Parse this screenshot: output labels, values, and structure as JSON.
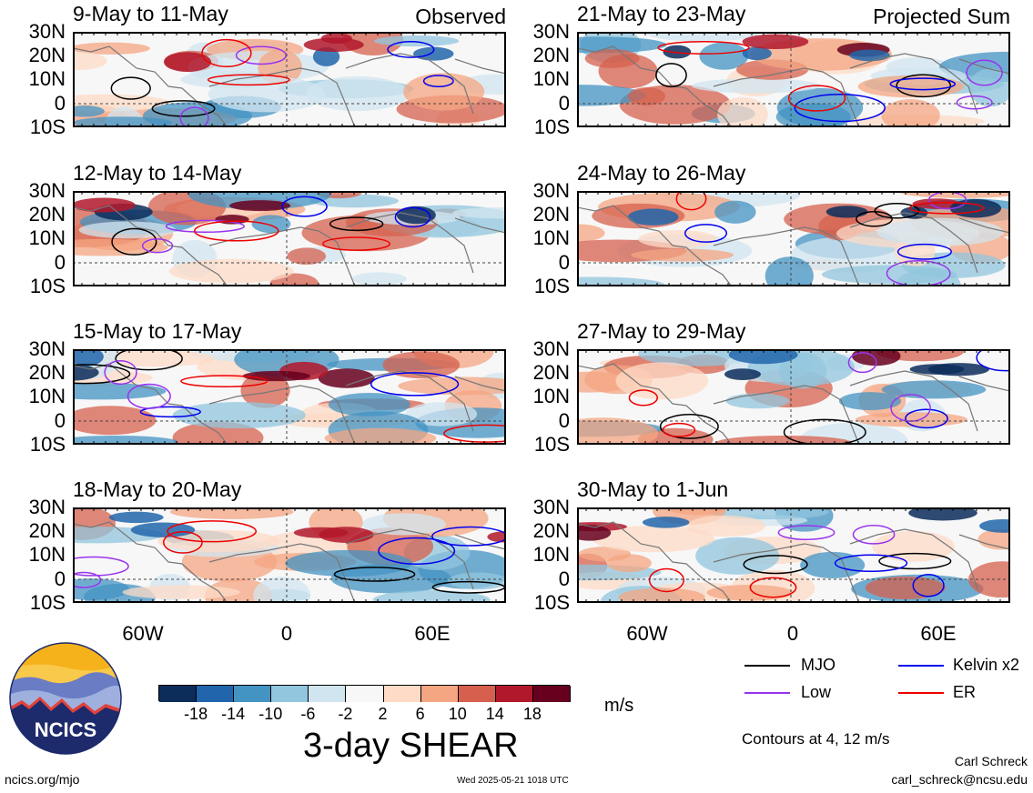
{
  "panels": [
    {
      "title": "9-May to 11-May",
      "tag": "Observed"
    },
    {
      "title": "12-May to 14-May",
      "tag": ""
    },
    {
      "title": "15-May to 17-May",
      "tag": ""
    },
    {
      "title": "18-May to 20-May",
      "tag": ""
    },
    {
      "title": "21-May to 23-May",
      "tag": "Projected Sum"
    },
    {
      "title": "24-May to 26-May",
      "tag": ""
    },
    {
      "title": "27-May to 29-May",
      "tag": ""
    },
    {
      "title": "30-May to 1-Jun",
      "tag": ""
    }
  ],
  "lat_labels": [
    "30N",
    "20N",
    "10N",
    "0",
    "10S"
  ],
  "lon_labels": [
    "60W",
    "0",
    "60E"
  ],
  "colorbar": {
    "ticks": [
      "-18",
      "-14",
      "-10",
      "-6",
      "-2",
      "2",
      "6",
      "10",
      "14",
      "18"
    ],
    "colors": [
      "#0c2c5a",
      "#2166ac",
      "#4393c3",
      "#92c5de",
      "#d1e5f0",
      "#f7f7f7",
      "#fddbc7",
      "#f4a582",
      "#d6604d",
      "#b2182b",
      "#67001f"
    ],
    "unit": "m/s",
    "title": "3-day SHEAR"
  },
  "legend": {
    "items": [
      {
        "label": "MJO",
        "color": "#000000"
      },
      {
        "label": "Kelvin x2",
        "color": "#0000ee"
      },
      {
        "label": "Low",
        "color": "#9933ee"
      },
      {
        "label": "ER",
        "color": "#ee0000"
      }
    ],
    "note": "Contours at 4, 12 m/s"
  },
  "logo": {
    "text": "NCICS"
  },
  "footer": {
    "site": "ncics.org/mjo",
    "timestamp": "Wed 2025-05-21 1018 UTC",
    "author": "Carl Schreck",
    "email": "carl_schreck@ncsu.edu"
  }
}
